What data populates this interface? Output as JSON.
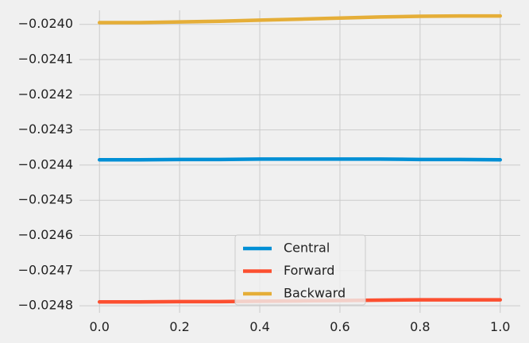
{
  "chart_data": {
    "type": "line",
    "title": "",
    "xlabel": "",
    "ylabel": "",
    "xlim": [
      -0.05,
      1.05
    ],
    "ylim": [
      -0.02482,
      -0.02396
    ],
    "x_ticks": [
      0.0,
      0.2,
      0.4,
      0.6,
      0.8,
      1.0
    ],
    "x_tick_labels": [
      "0.0",
      "0.2",
      "0.4",
      "0.6",
      "0.8",
      "1.0"
    ],
    "y_ticks": [
      -0.0248,
      -0.0247,
      -0.0246,
      -0.0245,
      -0.0244,
      -0.0243,
      -0.0242,
      -0.0241,
      -0.024
    ],
    "y_tick_labels": [
      "−0.0248",
      "−0.0247",
      "−0.0246",
      "−0.0245",
      "−0.0244",
      "−0.0243",
      "−0.0242",
      "−0.0241",
      "−0.0240"
    ],
    "grid": true,
    "background": "#f0f0f0",
    "grid_color": "#cbcbcb",
    "legend_position": "bottom-center",
    "x": [
      0.0,
      0.1,
      0.2,
      0.3,
      0.4,
      0.5,
      0.6,
      0.7,
      0.8,
      0.9,
      1.0
    ],
    "series": [
      {
        "name": "Central",
        "color": "#008fd5",
        "values": [
          -0.024385,
          -0.024385,
          -0.024384,
          -0.024384,
          -0.024383,
          -0.024383,
          -0.024383,
          -0.024383,
          -0.024384,
          -0.024384,
          -0.024385
        ]
      },
      {
        "name": "Forward",
        "color": "#fc4f30",
        "values": [
          -0.024789,
          -0.024789,
          -0.024788,
          -0.024788,
          -0.024787,
          -0.024786,
          -0.024785,
          -0.024784,
          -0.024783,
          -0.024783,
          -0.024783
        ]
      },
      {
        "name": "Backward",
        "color": "#e5ae38",
        "values": [
          -0.023995,
          -0.023995,
          -0.023993,
          -0.023991,
          -0.023988,
          -0.023985,
          -0.023982,
          -0.023979,
          -0.023977,
          -0.023976,
          -0.023976
        ]
      }
    ]
  }
}
